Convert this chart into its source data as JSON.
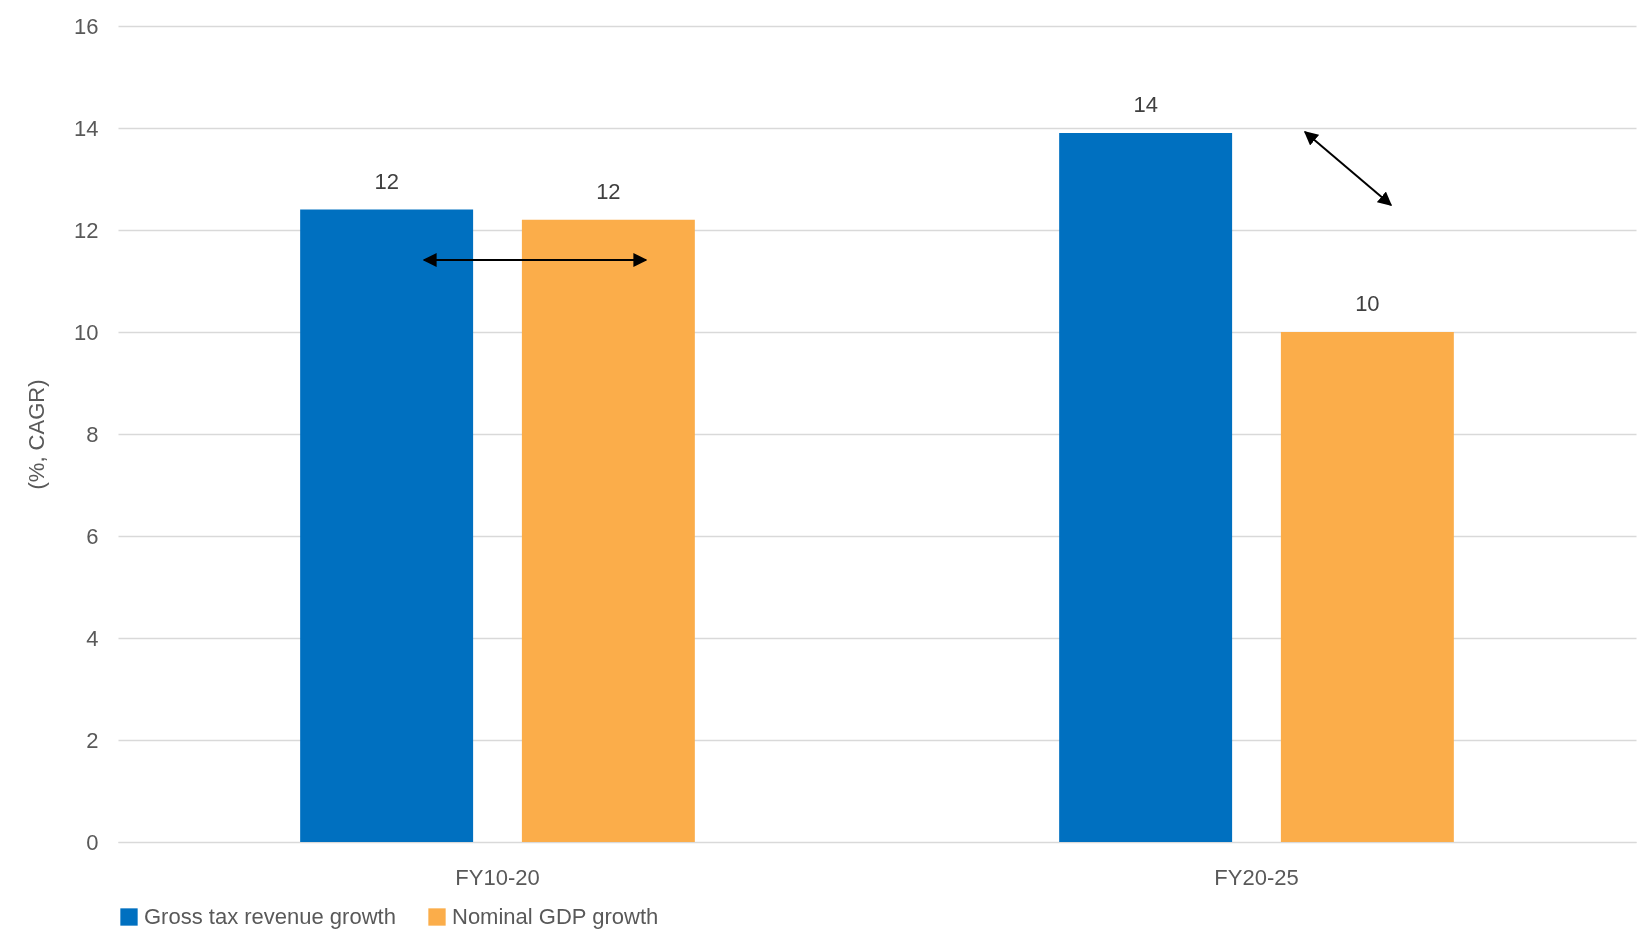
{
  "chart_data": {
    "type": "bar",
    "ylabel": "(%, CAGR)",
    "categories": [
      "FY10-20",
      "FY20-25"
    ],
    "series": [
      {
        "name": "Gross tax revenue growth",
        "color": "#0070c0",
        "values": [
          12.4,
          13.9
        ],
        "value_labels": [
          "12",
          "14"
        ]
      },
      {
        "name": "Nominal GDP growth",
        "color": "#fbad4a",
        "values": [
          12.2,
          10.0
        ],
        "value_labels": [
          "12",
          "10"
        ]
      }
    ],
    "ylim": [
      0,
      16
    ],
    "yticks": [
      0,
      2,
      4,
      6,
      8,
      10,
      12,
      14,
      16
    ],
    "grid": "y",
    "legend": "bottom"
  }
}
